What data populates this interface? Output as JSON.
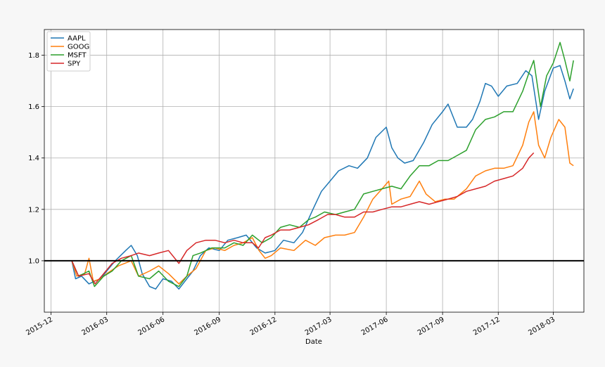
{
  "chart_data": {
    "type": "line",
    "title": "",
    "xlabel": "Date",
    "ylabel": "",
    "xlim": [
      "2015-11-20",
      "2018-04-20"
    ],
    "ylim": [
      0.8,
      1.9
    ],
    "grid": true,
    "legend": "top-left",
    "reference_line": {
      "y": 1.0,
      "color": "#000000"
    },
    "x_ticks": [
      "2015-12",
      "2016-03",
      "2016-06",
      "2016-09",
      "2016-12",
      "2017-03",
      "2017-06",
      "2017-09",
      "2017-12",
      "2018-03"
    ],
    "y_ticks": [
      "1.0",
      "1.2",
      "1.4",
      "1.6",
      "1.8"
    ],
    "series": [
      {
        "name": "AAPL",
        "color": "#1f77b4",
        "points": [
          [
            "2016-01-04",
            1.0
          ],
          [
            "2016-01-10",
            0.93
          ],
          [
            "2016-01-20",
            0.94
          ],
          [
            "2016-02-01",
            0.91
          ],
          [
            "2016-02-10",
            0.92
          ],
          [
            "2016-02-20",
            0.93
          ],
          [
            "2016-03-01",
            0.96
          ],
          [
            "2016-03-15",
            1.0
          ],
          [
            "2016-04-01",
            1.04
          ],
          [
            "2016-04-10",
            1.06
          ],
          [
            "2016-04-20",
            1.02
          ],
          [
            "2016-04-28",
            0.95
          ],
          [
            "2016-05-10",
            0.9
          ],
          [
            "2016-05-20",
            0.89
          ],
          [
            "2016-06-01",
            0.93
          ],
          [
            "2016-06-15",
            0.92
          ],
          [
            "2016-06-27",
            0.89
          ],
          [
            "2016-07-10",
            0.93
          ],
          [
            "2016-07-20",
            0.96
          ],
          [
            "2016-08-01",
            1.02
          ],
          [
            "2016-08-15",
            1.05
          ],
          [
            "2016-09-01",
            1.04
          ],
          [
            "2016-09-15",
            1.08
          ],
          [
            "2016-10-01",
            1.09
          ],
          [
            "2016-10-15",
            1.1
          ],
          [
            "2016-11-01",
            1.05
          ],
          [
            "2016-11-15",
            1.03
          ],
          [
            "2016-12-01",
            1.04
          ],
          [
            "2016-12-15",
            1.08
          ],
          [
            "2017-01-01",
            1.07
          ],
          [
            "2017-01-15",
            1.11
          ],
          [
            "2017-02-01",
            1.2
          ],
          [
            "2017-02-15",
            1.27
          ],
          [
            "2017-03-01",
            1.31
          ],
          [
            "2017-03-15",
            1.35
          ],
          [
            "2017-04-01",
            1.37
          ],
          [
            "2017-04-15",
            1.36
          ],
          [
            "2017-05-01",
            1.4
          ],
          [
            "2017-05-15",
            1.48
          ],
          [
            "2017-06-01",
            1.52
          ],
          [
            "2017-06-10",
            1.44
          ],
          [
            "2017-06-20",
            1.4
          ],
          [
            "2017-07-01",
            1.38
          ],
          [
            "2017-07-15",
            1.39
          ],
          [
            "2017-08-01",
            1.46
          ],
          [
            "2017-08-15",
            1.53
          ],
          [
            "2017-09-01",
            1.58
          ],
          [
            "2017-09-10",
            1.61
          ],
          [
            "2017-09-25",
            1.52
          ],
          [
            "2017-10-10",
            1.52
          ],
          [
            "2017-10-20",
            1.55
          ],
          [
            "2017-11-01",
            1.62
          ],
          [
            "2017-11-10",
            1.69
          ],
          [
            "2017-11-20",
            1.68
          ],
          [
            "2017-12-01",
            1.64
          ],
          [
            "2017-12-15",
            1.68
          ],
          [
            "2018-01-01",
            1.69
          ],
          [
            "2018-01-15",
            1.74
          ],
          [
            "2018-01-25",
            1.72
          ],
          [
            "2018-02-05",
            1.55
          ],
          [
            "2018-02-15",
            1.66
          ],
          [
            "2018-03-01",
            1.75
          ],
          [
            "2018-03-12",
            1.76
          ],
          [
            "2018-03-20",
            1.7
          ],
          [
            "2018-03-28",
            1.63
          ],
          [
            "2018-04-03",
            1.67
          ]
        ]
      },
      {
        "name": "GOOG",
        "color": "#ff7f0e",
        "points": [
          [
            "2016-01-04",
            1.0
          ],
          [
            "2016-01-12",
            0.94
          ],
          [
            "2016-01-25",
            0.95
          ],
          [
            "2016-02-01",
            1.01
          ],
          [
            "2016-02-08",
            0.92
          ],
          [
            "2016-02-20",
            0.93
          ],
          [
            "2016-03-01",
            0.95
          ],
          [
            "2016-03-20",
            0.98
          ],
          [
            "2016-04-10",
            1.0
          ],
          [
            "2016-04-22",
            0.94
          ],
          [
            "2016-05-10",
            0.96
          ],
          [
            "2016-05-25",
            0.98
          ],
          [
            "2016-06-10",
            0.95
          ],
          [
            "2016-06-27",
            0.91
          ],
          [
            "2016-07-10",
            0.94
          ],
          [
            "2016-07-25",
            0.97
          ],
          [
            "2016-08-10",
            1.04
          ],
          [
            "2016-08-25",
            1.05
          ],
          [
            "2016-09-10",
            1.04
          ],
          [
            "2016-09-25",
            1.06
          ],
          [
            "2016-10-10",
            1.07
          ],
          [
            "2016-10-25",
            1.09
          ],
          [
            "2016-11-05",
            1.04
          ],
          [
            "2016-11-15",
            1.01
          ],
          [
            "2016-11-25",
            1.02
          ],
          [
            "2016-12-10",
            1.05
          ],
          [
            "2017-01-01",
            1.04
          ],
          [
            "2017-01-20",
            1.08
          ],
          [
            "2017-02-05",
            1.06
          ],
          [
            "2017-02-20",
            1.09
          ],
          [
            "2017-03-10",
            1.1
          ],
          [
            "2017-03-25",
            1.1
          ],
          [
            "2017-04-10",
            1.11
          ],
          [
            "2017-04-25",
            1.17
          ],
          [
            "2017-05-10",
            1.24
          ],
          [
            "2017-05-25",
            1.28
          ],
          [
            "2017-06-05",
            1.31
          ],
          [
            "2017-06-10",
            1.22
          ],
          [
            "2017-06-25",
            1.24
          ],
          [
            "2017-07-10",
            1.25
          ],
          [
            "2017-07-25",
            1.31
          ],
          [
            "2017-08-05",
            1.26
          ],
          [
            "2017-08-20",
            1.23
          ],
          [
            "2017-09-05",
            1.24
          ],
          [
            "2017-09-20",
            1.24
          ],
          [
            "2017-10-10",
            1.28
          ],
          [
            "2017-10-25",
            1.33
          ],
          [
            "2017-11-10",
            1.35
          ],
          [
            "2017-11-25",
            1.36
          ],
          [
            "2017-12-10",
            1.36
          ],
          [
            "2017-12-25",
            1.37
          ],
          [
            "2018-01-10",
            1.45
          ],
          [
            "2018-01-20",
            1.54
          ],
          [
            "2018-01-28",
            1.58
          ],
          [
            "2018-02-05",
            1.45
          ],
          [
            "2018-02-15",
            1.4
          ],
          [
            "2018-02-25",
            1.48
          ],
          [
            "2018-03-10",
            1.55
          ],
          [
            "2018-03-20",
            1.52
          ],
          [
            "2018-03-28",
            1.38
          ],
          [
            "2018-04-03",
            1.37
          ]
        ]
      },
      {
        "name": "MSFT",
        "color": "#2ca02c",
        "points": [
          [
            "2016-01-04",
            1.0
          ],
          [
            "2016-01-15",
            0.94
          ],
          [
            "2016-02-01",
            0.96
          ],
          [
            "2016-02-10",
            0.9
          ],
          [
            "2016-02-25",
            0.94
          ],
          [
            "2016-03-10",
            0.96
          ],
          [
            "2016-03-25",
            1.0
          ],
          [
            "2016-04-10",
            1.02
          ],
          [
            "2016-04-22",
            0.94
          ],
          [
            "2016-05-10",
            0.93
          ],
          [
            "2016-05-25",
            0.96
          ],
          [
            "2016-06-10",
            0.92
          ],
          [
            "2016-06-27",
            0.9
          ],
          [
            "2016-07-10",
            0.94
          ],
          [
            "2016-07-20",
            1.02
          ],
          [
            "2016-08-01",
            1.03
          ],
          [
            "2016-08-20",
            1.05
          ],
          [
            "2016-09-10",
            1.05
          ],
          [
            "2016-09-25",
            1.07
          ],
          [
            "2016-10-10",
            1.06
          ],
          [
            "2016-10-25",
            1.1
          ],
          [
            "2016-11-10",
            1.07
          ],
          [
            "2016-11-25",
            1.09
          ],
          [
            "2016-12-10",
            1.13
          ],
          [
            "2016-12-25",
            1.14
          ],
          [
            "2017-01-10",
            1.13
          ],
          [
            "2017-01-25",
            1.16
          ],
          [
            "2017-02-05",
            1.17
          ],
          [
            "2017-02-20",
            1.19
          ],
          [
            "2017-03-10",
            1.18
          ],
          [
            "2017-03-25",
            1.19
          ],
          [
            "2017-04-10",
            1.2
          ],
          [
            "2017-04-25",
            1.26
          ],
          [
            "2017-05-10",
            1.27
          ],
          [
            "2017-05-25",
            1.28
          ],
          [
            "2017-06-10",
            1.29
          ],
          [
            "2017-06-25",
            1.28
          ],
          [
            "2017-07-10",
            1.33
          ],
          [
            "2017-07-25",
            1.37
          ],
          [
            "2017-08-10",
            1.37
          ],
          [
            "2017-08-25",
            1.39
          ],
          [
            "2017-09-10",
            1.39
          ],
          [
            "2017-09-25",
            1.41
          ],
          [
            "2017-10-10",
            1.43
          ],
          [
            "2017-10-25",
            1.51
          ],
          [
            "2017-11-10",
            1.55
          ],
          [
            "2017-11-25",
            1.56
          ],
          [
            "2017-12-10",
            1.58
          ],
          [
            "2017-12-25",
            1.58
          ],
          [
            "2018-01-10",
            1.66
          ],
          [
            "2018-01-20",
            1.73
          ],
          [
            "2018-01-28",
            1.78
          ],
          [
            "2018-02-08",
            1.6
          ],
          [
            "2018-02-18",
            1.72
          ],
          [
            "2018-03-01",
            1.77
          ],
          [
            "2018-03-12",
            1.85
          ],
          [
            "2018-03-20",
            1.78
          ],
          [
            "2018-03-28",
            1.7
          ],
          [
            "2018-04-03",
            1.78
          ]
        ]
      },
      {
        "name": "SPY",
        "color": "#d62728",
        "points": [
          [
            "2016-01-04",
            1.0
          ],
          [
            "2016-01-15",
            0.94
          ],
          [
            "2016-02-01",
            0.95
          ],
          [
            "2016-02-11",
            0.91
          ],
          [
            "2016-02-25",
            0.95
          ],
          [
            "2016-03-10",
            0.99
          ],
          [
            "2016-03-25",
            1.01
          ],
          [
            "2016-04-10",
            1.02
          ],
          [
            "2016-04-22",
            1.03
          ],
          [
            "2016-05-10",
            1.02
          ],
          [
            "2016-05-25",
            1.03
          ],
          [
            "2016-06-10",
            1.04
          ],
          [
            "2016-06-27",
            0.99
          ],
          [
            "2016-07-10",
            1.04
          ],
          [
            "2016-07-25",
            1.07
          ],
          [
            "2016-08-10",
            1.08
          ],
          [
            "2016-08-25",
            1.08
          ],
          [
            "2016-09-10",
            1.07
          ],
          [
            "2016-09-25",
            1.08
          ],
          [
            "2016-10-10",
            1.07
          ],
          [
            "2016-10-25",
            1.07
          ],
          [
            "2016-11-04",
            1.05
          ],
          [
            "2016-11-15",
            1.09
          ],
          [
            "2016-11-25",
            1.1
          ],
          [
            "2016-12-10",
            1.12
          ],
          [
            "2016-12-25",
            1.12
          ],
          [
            "2017-01-10",
            1.13
          ],
          [
            "2017-01-25",
            1.14
          ],
          [
            "2017-02-10",
            1.16
          ],
          [
            "2017-02-25",
            1.18
          ],
          [
            "2017-03-10",
            1.18
          ],
          [
            "2017-03-25",
            1.17
          ],
          [
            "2017-04-10",
            1.17
          ],
          [
            "2017-04-25",
            1.19
          ],
          [
            "2017-05-10",
            1.19
          ],
          [
            "2017-05-25",
            1.2
          ],
          [
            "2017-06-10",
            1.21
          ],
          [
            "2017-06-25",
            1.21
          ],
          [
            "2017-07-10",
            1.22
          ],
          [
            "2017-07-25",
            1.23
          ],
          [
            "2017-08-10",
            1.22
          ],
          [
            "2017-08-25",
            1.23
          ],
          [
            "2017-09-10",
            1.24
          ],
          [
            "2017-09-25",
            1.25
          ],
          [
            "2017-10-10",
            1.27
          ],
          [
            "2017-10-25",
            1.28
          ],
          [
            "2017-11-10",
            1.29
          ],
          [
            "2017-11-25",
            1.31
          ],
          [
            "2017-12-10",
            1.32
          ],
          [
            "2017-12-25",
            1.33
          ],
          [
            "2018-01-10",
            1.36
          ],
          [
            "2018-01-20",
            1.4
          ],
          [
            "2018-01-28",
            1.42
          ]
        ]
      }
    ]
  }
}
